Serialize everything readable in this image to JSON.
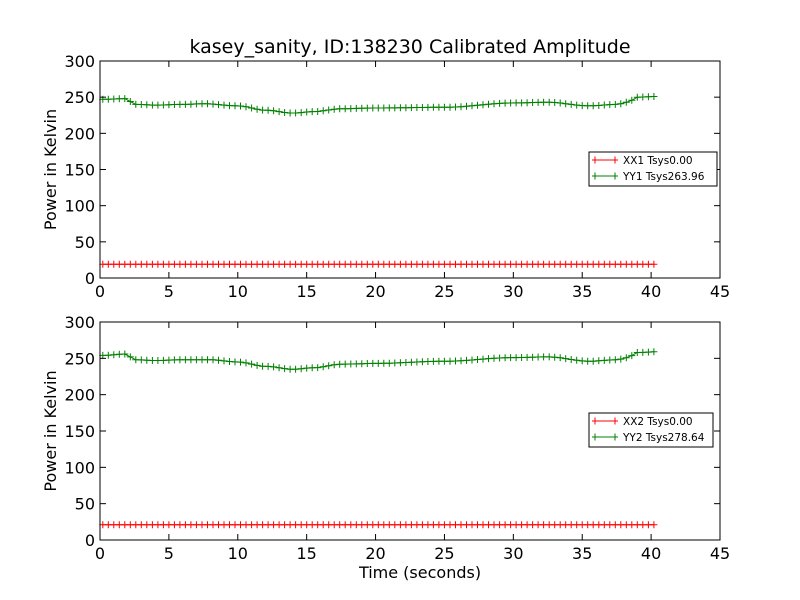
{
  "chart_data": [
    {
      "type": "line",
      "title": "kasey_sanity, ID:138230 Calibrated Amplitude",
      "xlabel": "",
      "ylabel": "Power in Kelvin",
      "xlim": [
        0,
        45
      ],
      "ylim": [
        0,
        300
      ],
      "xticks": [
        "0",
        "5",
        "10",
        "15",
        "20",
        "25",
        "30",
        "35",
        "40",
        "45"
      ],
      "yticks": [
        "0",
        "50",
        "100",
        "150",
        "200",
        "250",
        "300"
      ],
      "grid": false,
      "legend_position": "right",
      "marker": "+",
      "x": {
        "start": 0.2,
        "end": 40.4,
        "step": 0.4
      },
      "series": [
        {
          "name": "XX1 Tsys0.00",
          "color": "#ff0000",
          "shape": "flat",
          "base": 19,
          "anchors": [
            [
              0.2,
              19
            ],
            [
              40.4,
              19
            ]
          ]
        },
        {
          "name": "YY1 Tsys263.96",
          "color": "#008000",
          "shape": "smooth",
          "base": 238,
          "anchors": [
            [
              0.2,
              247
            ],
            [
              1.8,
              248
            ],
            [
              2.6,
              240
            ],
            [
              4,
              239
            ],
            [
              6,
              240
            ],
            [
              7.5,
              241
            ],
            [
              10,
              238
            ],
            [
              12,
              232
            ],
            [
              14,
              228
            ],
            [
              15.5,
              230
            ],
            [
              17.5,
              234
            ],
            [
              20,
              235
            ],
            [
              25,
              236
            ],
            [
              30,
              242
            ],
            [
              32.5,
              243
            ],
            [
              35.5,
              238
            ],
            [
              37.5,
              240
            ],
            [
              38.3,
              243
            ],
            [
              39,
              250
            ],
            [
              40.4,
              251
            ]
          ]
        }
      ]
    },
    {
      "type": "line",
      "title": "",
      "xlabel": "Time (seconds)",
      "ylabel": "Power in Kelvin",
      "xlim": [
        0,
        45
      ],
      "ylim": [
        0,
        300
      ],
      "xticks": [
        "0",
        "5",
        "10",
        "15",
        "20",
        "25",
        "30",
        "35",
        "40",
        "45"
      ],
      "yticks": [
        "0",
        "50",
        "100",
        "150",
        "200",
        "250",
        "300"
      ],
      "grid": false,
      "legend_position": "right",
      "marker": "+",
      "x": {
        "start": 0.2,
        "end": 40.4,
        "step": 0.4
      },
      "series": [
        {
          "name": "XX2 Tsys0.00",
          "color": "#ff0000",
          "shape": "flat",
          "base": 21,
          "anchors": [
            [
              0.2,
              21
            ],
            [
              40.4,
              21
            ]
          ]
        },
        {
          "name": "YY2 Tsys278.64",
          "color": "#008000",
          "shape": "smooth",
          "base": 246,
          "anchors": [
            [
              0.2,
              254
            ],
            [
              1.8,
              256
            ],
            [
              2.6,
              248
            ],
            [
              4,
              247
            ],
            [
              6,
              248
            ],
            [
              8,
              248
            ],
            [
              10,
              245
            ],
            [
              12,
              239
            ],
            [
              14,
              235
            ],
            [
              15.5,
              237
            ],
            [
              17.5,
              242
            ],
            [
              20,
              243
            ],
            [
              25,
              246
            ],
            [
              30,
              251
            ],
            [
              32.5,
              252
            ],
            [
              35.5,
              246
            ],
            [
              37.5,
              248
            ],
            [
              38.3,
              251
            ],
            [
              39,
              258
            ],
            [
              40.4,
              259
            ]
          ]
        }
      ]
    }
  ]
}
